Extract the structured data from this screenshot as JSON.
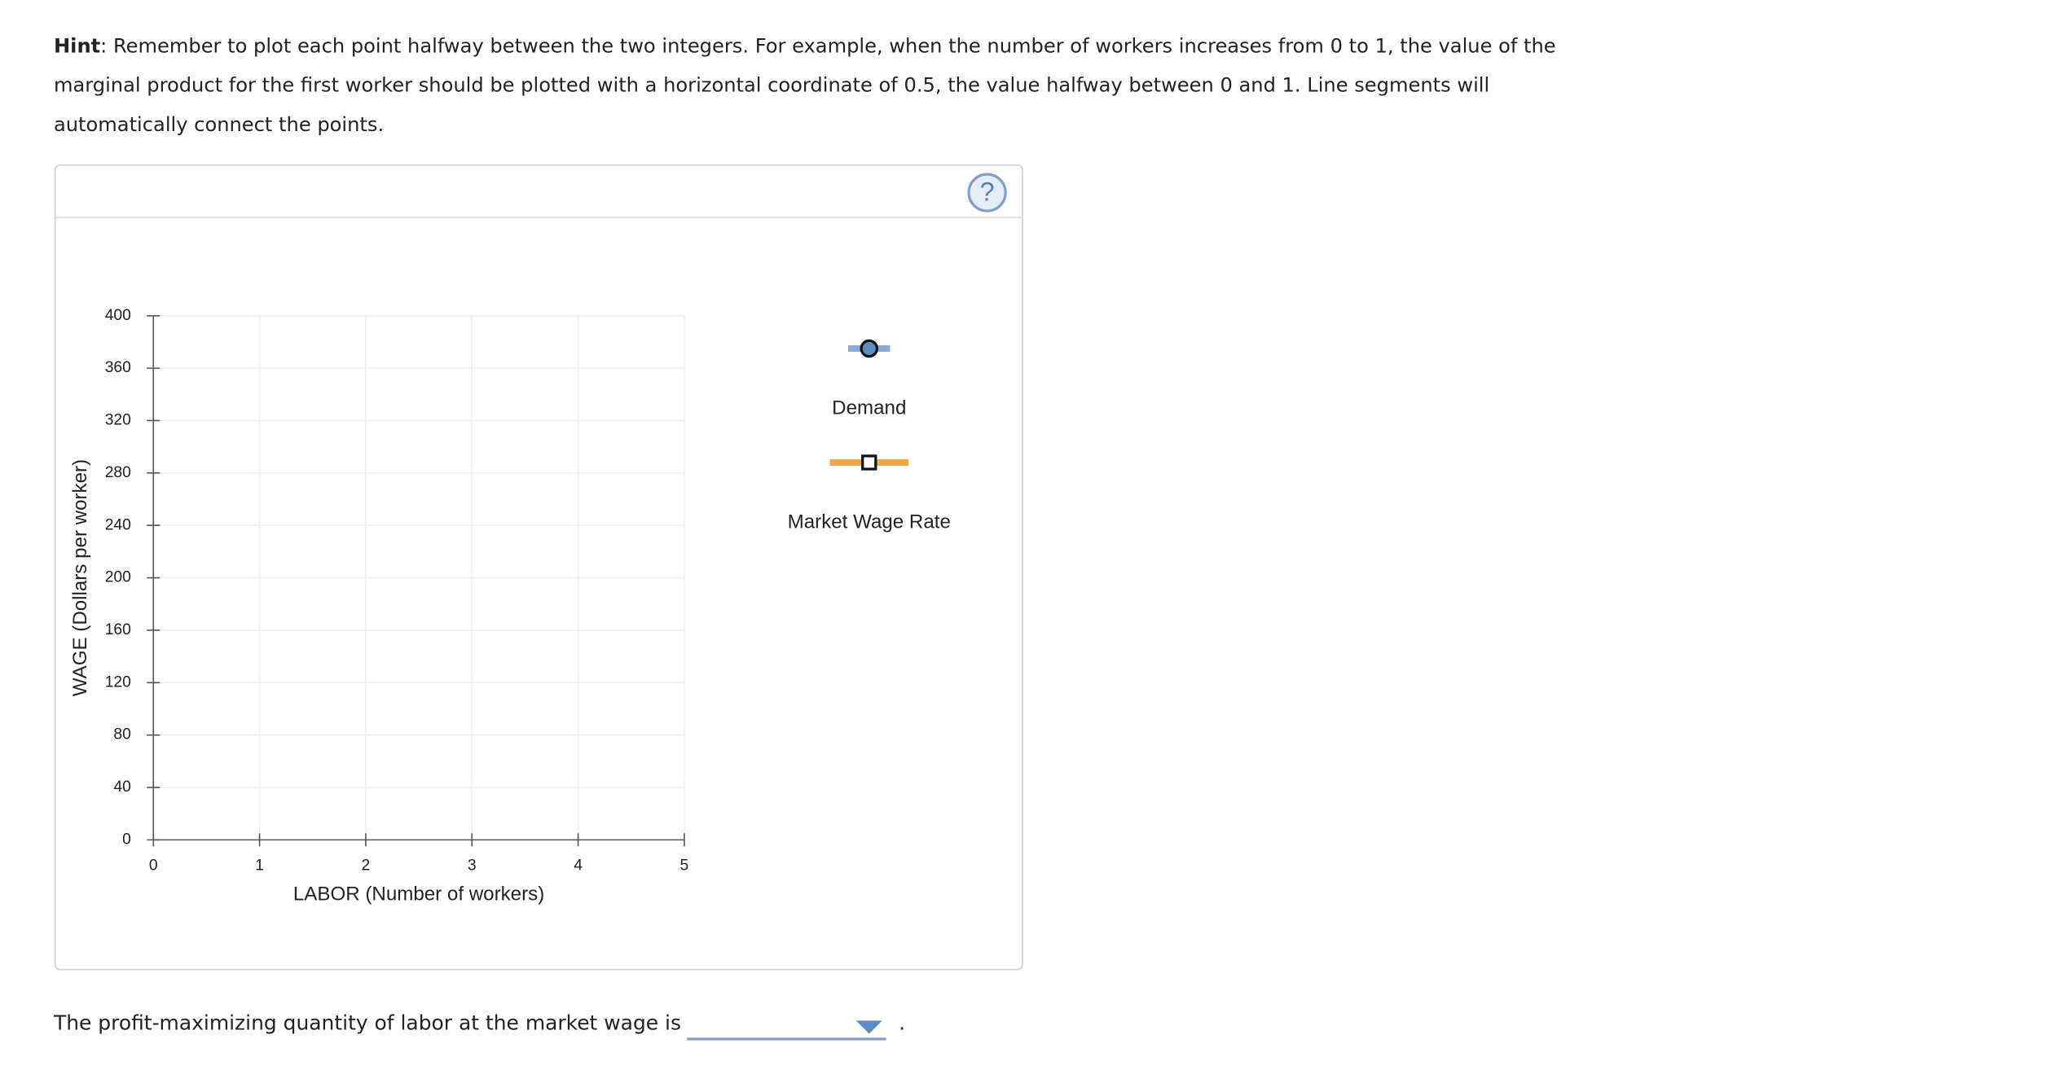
{
  "hint": {
    "label": "Hint",
    "text": ": Remember to plot each point halfway between the two integers. For example, when the number of workers increases from 0 to 1, the value of the marginal product for the first worker should be plotted with a horizontal coordinate of 0.5, the value halfway between 0 and 1. Line segments will automatically connect the points."
  },
  "help_icon": "?",
  "chart_data": {
    "type": "line",
    "xlabel": "LABOR (Number of workers)",
    "ylabel": "WAGE (Dollars per worker)",
    "xlim": [
      0,
      5
    ],
    "xticks": [
      0,
      1,
      2,
      3,
      4,
      5
    ],
    "ylim": [
      0,
      400
    ],
    "yticks": [
      0,
      40,
      80,
      120,
      160,
      200,
      240,
      280,
      320,
      360,
      400
    ],
    "grid": true,
    "series": [
      {
        "name": "Demand",
        "color": "#8aaad6",
        "marker": "circle"
      },
      {
        "name": "Market Wage Rate",
        "color": "#f0a848",
        "marker": "square"
      }
    ]
  },
  "question": {
    "text": "The profit-maximizing quantity of labor at the market wage is",
    "end": "."
  }
}
